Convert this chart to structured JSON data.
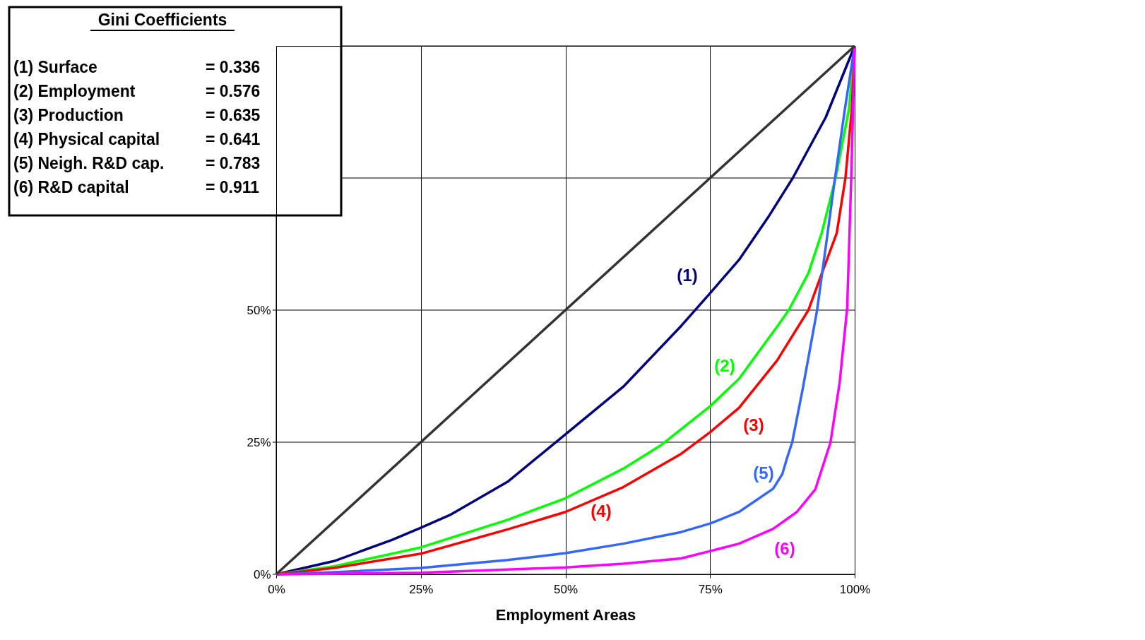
{
  "chart_data": {
    "type": "line",
    "xlabel": "Employment Areas",
    "xlim": [
      0,
      100
    ],
    "ylim": [
      0,
      100
    ],
    "xticks": [
      {
        "value": 0,
        "label": "0%"
      },
      {
        "value": 25,
        "label": "25%"
      },
      {
        "value": 50,
        "label": "50%"
      },
      {
        "value": 75,
        "label": "75%"
      },
      {
        "value": 100,
        "label": "100%"
      }
    ],
    "yticks": [
      {
        "value": 0,
        "label": "0%"
      },
      {
        "value": 25,
        "label": "25%"
      },
      {
        "value": 50,
        "label": "50%"
      },
      {
        "value": 75,
        "label": null
      },
      {
        "value": 100,
        "label": null
      }
    ],
    "grid": true,
    "line_style": "solid",
    "marker": "none",
    "series": [
      {
        "name": "(1)",
        "color": "#000080",
        "x": [
          0,
          10,
          20,
          25,
          30,
          40,
          50,
          60,
          70,
          75,
          80,
          85,
          89.3,
          95,
          100
        ],
        "values": [
          0,
          2.5,
          6.5,
          8.8,
          11.2,
          17.5,
          26.5,
          35.5,
          47,
          53.2,
          59.5,
          67.5,
          75,
          86.5,
          100
        ]
      },
      {
        "name": "(2)",
        "color": "#00ff00",
        "x": [
          0,
          10,
          25,
          40,
          50,
          60,
          66.6,
          75,
          80,
          86.6,
          88.6,
          92,
          94.3,
          96.7,
          99,
          100
        ],
        "values": [
          0,
          1.5,
          5.1,
          10.3,
          14.4,
          20,
          24.5,
          31.8,
          37,
          46.9,
          50,
          57,
          64.6,
          75,
          88,
          100
        ]
      },
      {
        "name": "(3)",
        "color": "#ff0000",
        "x": [
          0,
          10,
          25,
          40,
          50,
          60,
          70,
          75,
          80,
          86.6,
          92,
          94,
          96.9,
          98.4,
          99.5,
          100
        ],
        "values": [
          0,
          1.2,
          3.9,
          8.5,
          11.8,
          16.5,
          22.8,
          26.9,
          31.5,
          40.5,
          50,
          56,
          64.6,
          75,
          88,
          100
        ]
      },
      {
        "name": "(5)",
        "color": "#3366ff",
        "x": [
          0,
          10,
          25,
          40,
          50,
          60,
          70,
          75,
          80,
          85.9,
          87.5,
          88.3,
          89.2,
          91,
          93.5,
          95,
          96.6,
          98.3,
          100
        ],
        "values": [
          0,
          0.4,
          1.2,
          2.7,
          4.0,
          5.8,
          8.0,
          9.6,
          11.8,
          16.2,
          19,
          22,
          25,
          35,
          50,
          62,
          75,
          88,
          100
        ]
      },
      {
        "name": "(6)",
        "color": "#ff00ff",
        "x": [
          0,
          25,
          50,
          60,
          70,
          75,
          80,
          85.9,
          90,
          93.2,
          95.8,
          97.4,
          98.7,
          99.4,
          100
        ],
        "values": [
          0,
          0.3,
          1.3,
          2.0,
          3.0,
          4.4,
          5.8,
          8.6,
          11.8,
          16.1,
          24.9,
          36.3,
          50.4,
          75,
          100
        ]
      },
      {
        "color": "#333333",
        "x": [
          0,
          100
        ],
        "values": [
          0,
          100
        ]
      }
    ],
    "annotations": [
      "Gini Coefficients",
      "(1)  Surface = 0.336",
      "(2)  Employment = 0.576",
      "(3)  Production = 0.635",
      "(4)  Physical capital = 0.641",
      "(5)  Neigh. R&D cap. = 0.783",
      "(6)  R&D capital = 0.911",
      "(4)"
    ]
  }
}
